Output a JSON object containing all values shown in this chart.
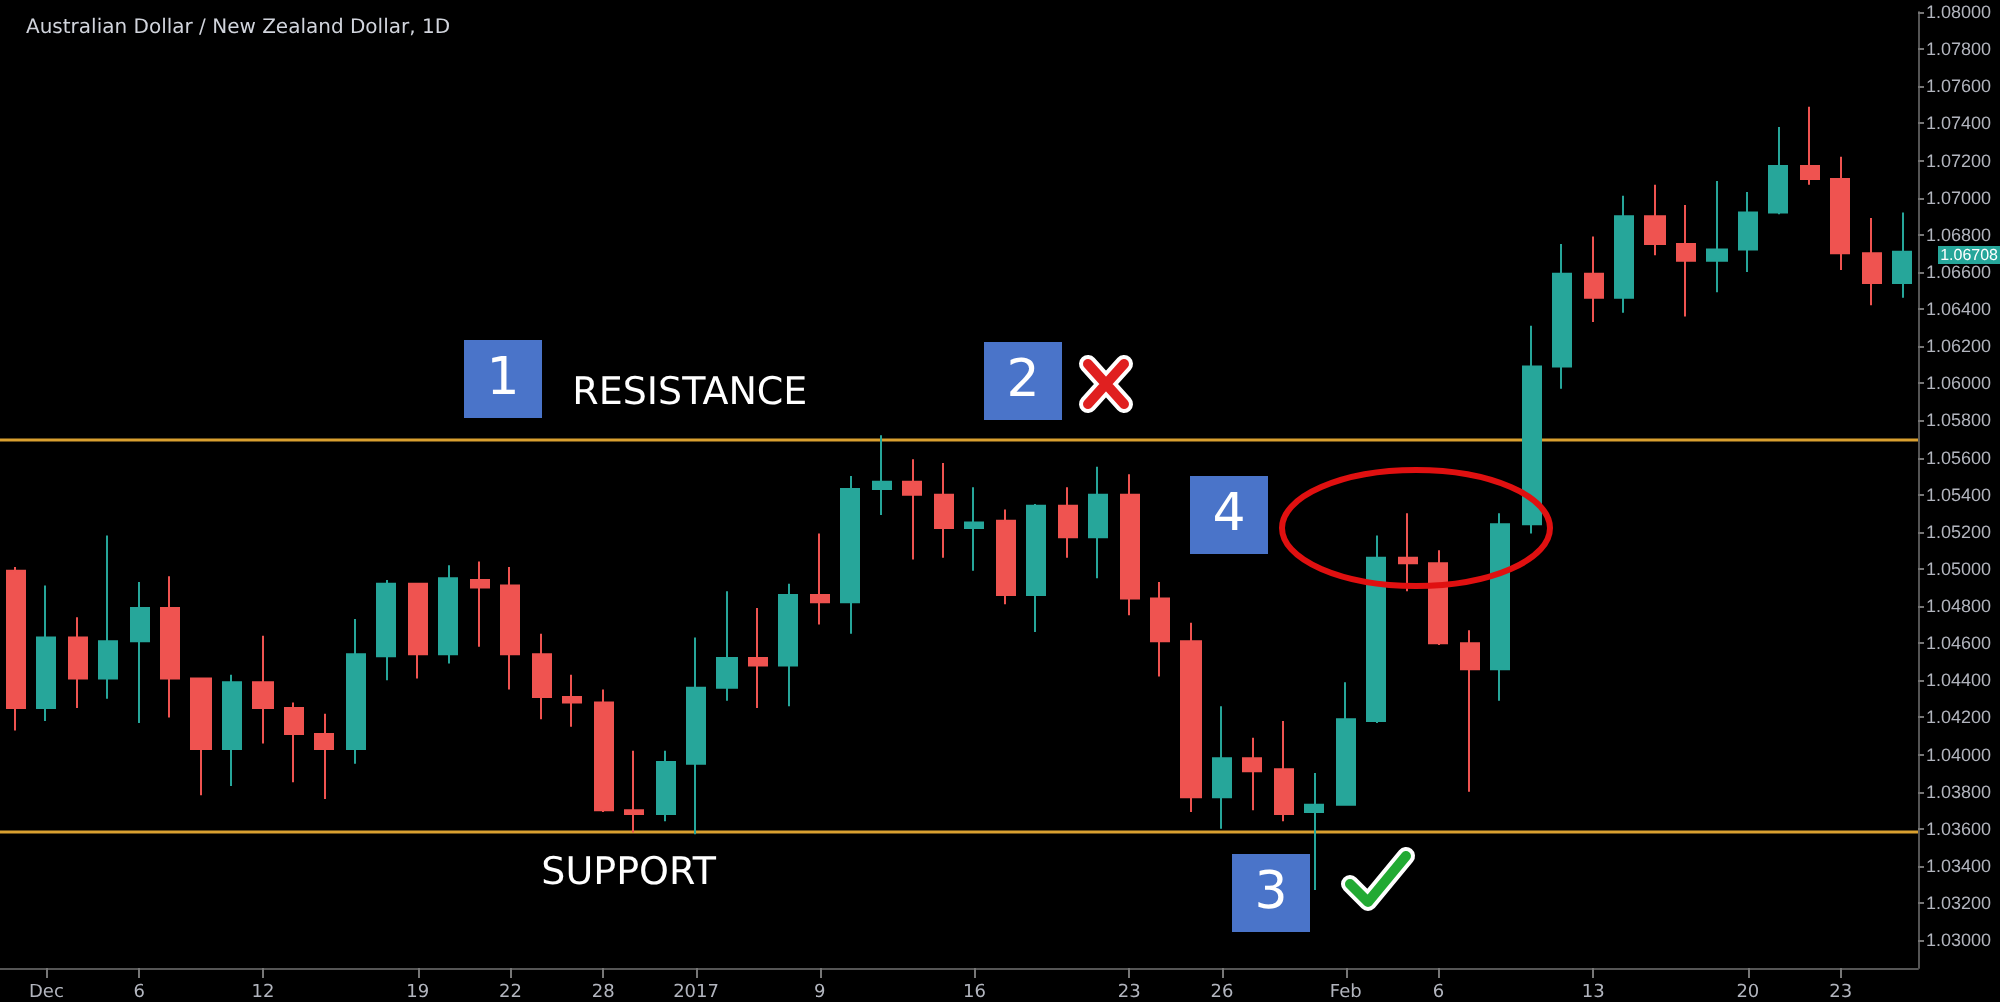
{
  "chart_data": {
    "type": "candlestick",
    "title": "Australian Dollar / New Zealand Dollar, 1D",
    "categories": [
      null,
      "Dec",
      null,
      null,
      "6",
      null,
      null,
      null,
      "12",
      null,
      null,
      null,
      null,
      "19",
      null,
      null,
      "22",
      null,
      null,
      "28",
      null,
      null,
      "2017",
      null,
      null,
      null,
      "9",
      null,
      null,
      null,
      null,
      "16",
      null,
      null,
      null,
      null,
      "23",
      null,
      null,
      "26",
      null,
      null,
      null,
      "Feb",
      null,
      null,
      "6",
      null,
      null,
      null,
      null,
      "13",
      null,
      null,
      null,
      null,
      "20",
      null,
      null,
      "23",
      null,
      null
    ],
    "ohlc": [
      [
        1.0499,
        1.0501,
        1.0413,
        1.0425
      ],
      [
        1.0425,
        1.0491,
        1.0418,
        1.0463
      ],
      [
        1.0463,
        1.0474,
        1.0425,
        1.0441
      ],
      [
        1.0441,
        1.0518,
        1.043,
        1.0461
      ],
      [
        1.0461,
        1.0493,
        1.0417,
        1.0479
      ],
      [
        1.0479,
        1.0496,
        1.042,
        1.0441
      ],
      [
        1.0441,
        1.0441,
        1.0378,
        1.0403
      ],
      [
        1.0403,
        1.0443,
        1.0383,
        1.0439
      ],
      [
        1.0439,
        1.0464,
        1.0406,
        1.0425
      ],
      [
        1.0425,
        1.0428,
        1.0385,
        1.0411
      ],
      [
        1.0411,
        1.0422,
        1.0376,
        1.0403
      ],
      [
        1.0403,
        1.0473,
        1.0395,
        1.0454
      ],
      [
        1.0453,
        1.0494,
        1.044,
        1.0492
      ],
      [
        1.0492,
        1.0492,
        1.0441,
        1.0454
      ],
      [
        1.0454,
        1.0502,
        1.0449,
        1.0495
      ],
      [
        1.0494,
        1.0504,
        1.0458,
        1.049
      ],
      [
        1.0491,
        1.0501,
        1.0435,
        1.0454
      ],
      [
        1.0454,
        1.0465,
        1.0419,
        1.0431
      ],
      [
        1.0431,
        1.0443,
        1.0415,
        1.0428
      ],
      [
        1.0428,
        1.0435,
        1.0369,
        1.037
      ],
      [
        1.037,
        1.0402,
        1.0358,
        1.0368
      ],
      [
        1.0368,
        1.0402,
        1.0364,
        1.0396
      ],
      [
        1.0395,
        1.0463,
        1.0357,
        1.0436
      ],
      [
        1.0436,
        1.0488,
        1.0429,
        1.0452
      ],
      [
        1.0452,
        1.0479,
        1.0425,
        1.0448
      ],
      [
        1.0448,
        1.0492,
        1.0426,
        1.0486
      ],
      [
        1.0486,
        1.0519,
        1.047,
        1.0482
      ],
      [
        1.0482,
        1.055,
        1.0465,
        1.0543
      ],
      [
        1.0543,
        1.0572,
        1.0529,
        1.0547
      ],
      [
        1.0547,
        1.0559,
        1.0505,
        1.054
      ],
      [
        1.054,
        1.0557,
        1.0506,
        1.0522
      ],
      [
        1.0522,
        1.0544,
        1.0499,
        1.0525
      ],
      [
        1.0526,
        1.0532,
        1.0481,
        1.0486
      ],
      [
        1.0486,
        1.0535,
        1.0466,
        1.0534
      ],
      [
        1.0534,
        1.0544,
        1.0506,
        1.0517
      ],
      [
        1.0517,
        1.0555,
        1.0495,
        1.054
      ],
      [
        1.054,
        1.0551,
        1.0475,
        1.0484
      ],
      [
        1.0484,
        1.0493,
        1.0442,
        1.0461
      ],
      [
        1.0461,
        1.0471,
        1.0369,
        1.0377
      ],
      [
        1.0377,
        1.0426,
        1.036,
        1.0398
      ],
      [
        1.0398,
        1.0409,
        1.037,
        1.0391
      ],
      [
        1.0392,
        1.0418,
        1.0364,
        1.0368
      ],
      [
        1.0369,
        1.039,
        1.0327,
        1.0373
      ],
      [
        1.0373,
        1.0439,
        1.0373,
        1.0419
      ],
      [
        1.0418,
        1.0518,
        1.0417,
        1.0506
      ],
      [
        1.0506,
        1.053,
        1.0488,
        1.0503
      ],
      [
        1.0503,
        1.051,
        1.0459,
        1.046
      ],
      [
        1.046,
        1.0467,
        1.038,
        1.0446
      ],
      [
        1.0446,
        1.053,
        1.0429,
        1.0524
      ],
      [
        1.0524,
        1.0631,
        1.0519,
        1.0609
      ],
      [
        1.0609,
        1.0675,
        1.0597,
        1.0659
      ],
      [
        1.0659,
        1.0679,
        1.0633,
        1.0646
      ],
      [
        1.0646,
        1.0701,
        1.0638,
        1.069
      ],
      [
        1.069,
        1.0707,
        1.0669,
        1.0675
      ],
      [
        1.0675,
        1.0696,
        1.0636,
        1.0666
      ],
      [
        1.0666,
        1.0709,
        1.0649,
        1.0672
      ],
      [
        1.0672,
        1.0703,
        1.066,
        1.0692
      ],
      [
        1.0692,
        1.0738,
        1.0691,
        1.0717
      ],
      [
        1.0717,
        1.0749,
        1.0707,
        1.071
      ],
      [
        1.071,
        1.0722,
        1.0661,
        1.067
      ],
      [
        1.067,
        1.0689,
        1.0642,
        1.0654
      ],
      [
        1.0654,
        1.0692,
        1.0646,
        1.06708
      ]
    ],
    "colors": [
      "#ef5350",
      "#26a69a",
      "#ef5350",
      "#26a69a",
      "#26a69a",
      "#ef5350",
      "#ef5350",
      "#26a69a",
      "#ef5350",
      "#ef5350",
      "#ef5350",
      "#26a69a",
      "#26a69a",
      "#ef5350",
      "#26a69a",
      "#ef5350",
      "#ef5350",
      "#ef5350",
      "#ef5350",
      "#ef5350",
      "#ef5350",
      "#26a69a",
      "#26a69a",
      "#26a69a",
      "#ef5350",
      "#26a69a",
      "#ef5350",
      "#26a69a",
      "#26a69a",
      "#ef5350",
      "#ef5350",
      "#26a69a",
      "#ef5350",
      "#26a69a",
      "#ef5350",
      "#26a69a",
      "#ef5350",
      "#ef5350",
      "#ef5350",
      "#26a69a",
      "#ef5350",
      "#ef5350",
      "#26a69a",
      "#26a69a",
      "#26a69a",
      "#ef5350",
      "#ef5350",
      "#ef5350",
      "#26a69a",
      "#26a69a",
      "#26a69a",
      "#ef5350",
      "#26a69a",
      "#ef5350",
      "#ef5350",
      "#26a69a",
      "#26a69a",
      "#26a69a",
      "#ef5350",
      "#ef5350",
      "#ef5350",
      "#26a69a"
    ],
    "ylim": [
      1.0285,
      1.08
    ],
    "yticks": [
      {
        "value": 1.03,
        "label": "1.03000"
      },
      {
        "value": 1.032,
        "label": "1.03200"
      },
      {
        "value": 1.034,
        "label": "1.03400"
      },
      {
        "value": 1.036,
        "label": "1.03600"
      },
      {
        "value": 1.038,
        "label": "1.03800"
      },
      {
        "value": 1.04,
        "label": "1.04000"
      },
      {
        "value": 1.042,
        "label": "1.04200"
      },
      {
        "value": 1.044,
        "label": "1.04400"
      },
      {
        "value": 1.046,
        "label": "1.04600"
      },
      {
        "value": 1.048,
        "label": "1.04800"
      },
      {
        "value": 1.05,
        "label": "1.05000"
      },
      {
        "value": 1.052,
        "label": "1.05200"
      },
      {
        "value": 1.054,
        "label": "1.05400"
      },
      {
        "value": 1.056,
        "label": "1.05600"
      },
      {
        "value": 1.058,
        "label": "1.05800"
      },
      {
        "value": 1.06,
        "label": "1.06000"
      },
      {
        "value": 1.062,
        "label": "1.06200"
      },
      {
        "value": 1.064,
        "label": "1.06400"
      },
      {
        "value": 1.066,
        "label": "1.06600"
      },
      {
        "value": 1.068,
        "label": "1.06800"
      },
      {
        "value": 1.07,
        "label": "1.07000"
      },
      {
        "value": 1.072,
        "label": "1.07200"
      },
      {
        "value": 1.074,
        "label": "1.07400"
      },
      {
        "value": 1.076,
        "label": "1.07600"
      },
      {
        "value": 1.078,
        "label": "1.07800"
      },
      {
        "value": 1.08,
        "label": "1.08000"
      }
    ],
    "grid": false,
    "ref_lines": [
      {
        "axis": "y",
        "value": 1.057,
        "label": "RESISTANCE",
        "color": "#d9a030"
      },
      {
        "axis": "y",
        "value": 1.0358,
        "label": "SUPPORT",
        "color": "#d9a030"
      }
    ],
    "annotations": [
      "1",
      "2",
      "3",
      "4",
      "1.06708"
    ]
  }
}
